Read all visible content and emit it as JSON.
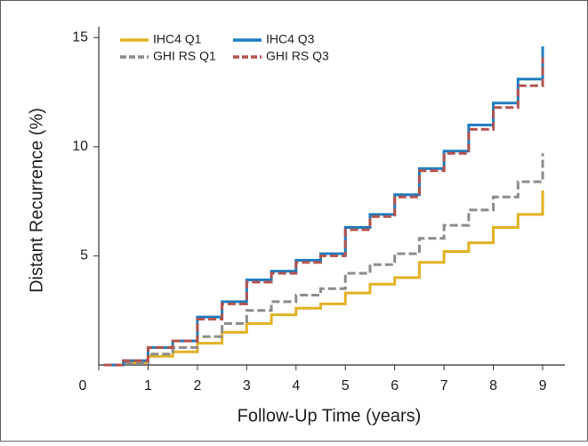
{
  "chart_data": {
    "type": "step-line",
    "x_label": "Follow-Up Time (years)",
    "y_label": "Distant Recurrence (%)",
    "x": [
      0.1,
      0.5,
      1,
      1.5,
      2,
      2.5,
      3,
      3.5,
      4,
      4.5,
      5,
      5.5,
      6,
      6.5,
      7,
      7.5,
      8,
      8.5,
      9,
      9
    ],
    "series": [
      {
        "name": "IHC4 Q1",
        "color": "#e3b224",
        "dashed": false,
        "values": [
          0,
          0.1,
          0.4,
          0.6,
          1.0,
          1.5,
          1.9,
          2.3,
          2.6,
          2.8,
          3.3,
          3.7,
          4.0,
          4.7,
          5.2,
          5.6,
          6.3,
          6.9,
          7.5,
          8.0
        ]
      },
      {
        "name": "IHC4 Q3",
        "color": "#1b7dc0",
        "dashed": false,
        "values": [
          0,
          0.2,
          0.8,
          1.1,
          2.2,
          2.9,
          3.9,
          4.3,
          4.8,
          5.1,
          6.3,
          6.9,
          7.8,
          9.0,
          9.8,
          11.0,
          12.0,
          13.1,
          13.7,
          14.6
        ]
      },
      {
        "name": "GHI RS Q1",
        "color": "#8c8c8c",
        "dashed": true,
        "values": [
          0,
          0.1,
          0.5,
          0.8,
          1.3,
          1.9,
          2.5,
          2.9,
          3.2,
          3.5,
          4.2,
          4.6,
          5.1,
          5.8,
          6.4,
          7.1,
          7.7,
          8.4,
          9.0,
          9.7
        ]
      },
      {
        "name": "GHI RS Q3",
        "color": "#b5524e",
        "dashed": true,
        "values": [
          0,
          0.2,
          0.8,
          1.1,
          2.1,
          2.8,
          3.8,
          4.2,
          4.7,
          5.0,
          6.2,
          6.8,
          7.7,
          8.9,
          9.7,
          10.8,
          11.8,
          12.8,
          13.3,
          14.1
        ]
      }
    ],
    "xlim": [
      0,
      9.45
    ],
    "xticks": [
      0,
      1,
      2,
      3,
      4,
      5,
      6,
      7,
      8,
      9
    ],
    "ylim": [
      0,
      15.5
    ],
    "yticks": [
      5,
      10,
      15
    ],
    "legend": "top-left"
  }
}
